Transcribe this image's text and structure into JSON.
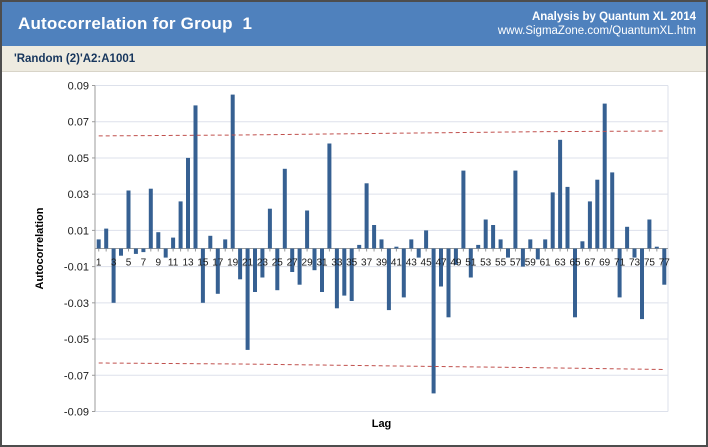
{
  "header": {
    "title": "Autocorrelation for Group  1",
    "credit_line1": "Analysis by Quantum XL 2014",
    "credit_line2": "www.SigmaZone.com/QuantumXL.htm",
    "bg_color": "#4F81BD"
  },
  "subtitle": {
    "text": "'Random (2)'A2:A1001",
    "bg_color": "#EEEBE0",
    "text_color": "#17365D"
  },
  "chart_data": {
    "type": "bar",
    "title": "",
    "xlabel": "Lag",
    "ylabel": "Autocorrelation",
    "ylim": [
      -0.09,
      0.09
    ],
    "grid": true,
    "ytick_labels": [
      "0.09",
      "0.07",
      "0.05",
      "0.03",
      "0.01",
      "-0.01",
      "-0.03",
      "-0.05",
      "-0.07",
      "-0.09"
    ],
    "ytick_values": [
      0.09,
      0.07,
      0.05,
      0.03,
      0.01,
      -0.01,
      -0.03,
      -0.05,
      -0.07,
      -0.09
    ],
    "x_first": 1,
    "x_last": 77,
    "x_label_step_note": "labels shown on odd lags only",
    "values": [
      0.005,
      0.011,
      -0.03,
      -0.004,
      0.032,
      -0.003,
      -0.002,
      0.033,
      0.009,
      -0.005,
      0.006,
      0.026,
      0.05,
      0.079,
      -0.03,
      0.007,
      -0.025,
      0.005,
      0.085,
      -0.017,
      -0.056,
      -0.024,
      -0.016,
      0.022,
      -0.023,
      0.044,
      -0.013,
      -0.02,
      0.021,
      -0.012,
      -0.024,
      0.058,
      -0.033,
      -0.026,
      -0.029,
      0.002,
      0.036,
      0.013,
      0.005,
      -0.034,
      0.001,
      -0.027,
      0.005,
      -0.005,
      0.01,
      -0.08,
      -0.021,
      -0.038,
      -0.009,
      0.043,
      -0.016,
      0.002,
      0.016,
      0.013,
      0.005,
      -0.005,
      0.043,
      -0.01,
      0.005,
      -0.006,
      0.005,
      0.031,
      0.06,
      0.034,
      -0.038,
      0.004,
      0.026,
      0.038,
      0.08,
      0.042,
      -0.027,
      0.012,
      -0.005,
      -0.039,
      0.016,
      0.001,
      -0.02
    ],
    "bar_color": "#366092",
    "grid_color": "#dde1eb",
    "axis_color": "#9b9b9b",
    "tick_text_color": "#1a1a1a",
    "confidence_lines": {
      "color": "#C0504D",
      "style": "dashed",
      "upper": [
        [
          1,
          0.0622
        ],
        [
          20,
          0.0627
        ],
        [
          40,
          0.0636
        ],
        [
          60,
          0.0645
        ],
        [
          77,
          0.0649
        ]
      ],
      "lower": [
        [
          1,
          -0.0632
        ],
        [
          20,
          -0.0638
        ],
        [
          40,
          -0.0648
        ],
        [
          60,
          -0.0658
        ],
        [
          77,
          -0.0668
        ]
      ]
    }
  }
}
